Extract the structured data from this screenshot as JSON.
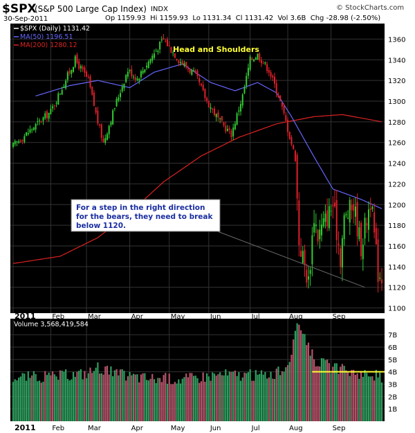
{
  "header": {
    "symbol": "$SPX",
    "name": "(S&P 500 Large Cap Index)",
    "exchange": "INDX",
    "watermark": "© StockCharts.com",
    "date": "30-Sep-2011",
    "op_label": "Op",
    "op": "1159.93",
    "hi_label": "Hi",
    "hi": "1159.93",
    "lo_label": "Lo",
    "lo": "1131.34",
    "cl_label": "Cl",
    "cl": "1131.42",
    "vol_label": "Vol",
    "vol": "3.6B",
    "chg_label": "Chg",
    "chg": "-28.98 (-2.50%)"
  },
  "colors": {
    "background": "#000000",
    "up_candle": "#32cd32",
    "down_candle": "#e0202a",
    "ma50": "#6666ff",
    "ma200": "#dd2222",
    "pattern": "#ffff33",
    "shoulders_small": "#ff33cc",
    "resistance": "#33cc33",
    "volume_up": "#2f9e5f",
    "volume_down": "#b4536a"
  },
  "chart_data": [
    {
      "type": "candlestick",
      "title": "$SPX (Daily) 1131.42",
      "legend": [
        {
          "label": "$SPX (Daily) 1131.42",
          "color": "#ffffff"
        },
        {
          "label": "MA(50) 1196.51",
          "color": "#6666ff"
        },
        {
          "label": "MA(200) 1280.12",
          "color": "#dd2222"
        }
      ],
      "x_months": [
        "2011",
        "Feb",
        "Mar",
        "Apr",
        "May",
        "Jun",
        "Jul",
        "Aug",
        "Sep"
      ],
      "month_start_index": [
        0,
        20,
        39,
        62,
        83,
        104,
        126,
        146,
        169
      ],
      "ylim": [
        1095,
        1375
      ],
      "yticks": [
        1100,
        1120,
        1140,
        1160,
        1180,
        1200,
        1220,
        1240,
        1260,
        1280,
        1300,
        1320,
        1340,
        1360
      ],
      "close_keypoints": [
        [
          0,
          1257
        ],
        [
          8,
          1270
        ],
        [
          20,
          1290
        ],
        [
          33,
          1340
        ],
        [
          40,
          1320
        ],
        [
          45,
          1280
        ],
        [
          48,
          1260
        ],
        [
          55,
          1300
        ],
        [
          61,
          1330
        ],
        [
          66,
          1322
        ],
        [
          80,
          1360
        ],
        [
          84,
          1350
        ],
        [
          88,
          1340
        ],
        [
          97,
          1325
        ],
        [
          103,
          1300
        ],
        [
          110,
          1280
        ],
        [
          116,
          1268
        ],
        [
          122,
          1305
        ],
        [
          126,
          1340
        ],
        [
          130,
          1345
        ],
        [
          136,
          1330
        ],
        [
          141,
          1306
        ],
        [
          145,
          1280
        ],
        [
          150,
          1245
        ],
        [
          152,
          1165
        ],
        [
          157,
          1125
        ],
        [
          160,
          1190
        ],
        [
          162,
          1170
        ],
        [
          170,
          1200
        ],
        [
          174,
          1150
        ],
        [
          176,
          1185
        ],
        [
          181,
          1200
        ],
        [
          185,
          1160
        ],
        [
          190,
          1205
        ],
        [
          194,
          1135
        ],
        [
          196,
          1131
        ]
      ],
      "ma50_keypoints": [
        [
          12,
          1305
        ],
        [
          30,
          1315
        ],
        [
          45,
          1320
        ],
        [
          62,
          1313
        ],
        [
          75,
          1328
        ],
        [
          90,
          1336
        ],
        [
          105,
          1318
        ],
        [
          118,
          1310
        ],
        [
          130,
          1318
        ],
        [
          140,
          1308
        ],
        [
          148,
          1285
        ],
        [
          160,
          1246
        ],
        [
          170,
          1215
        ],
        [
          185,
          1205
        ],
        [
          196,
          1196
        ]
      ],
      "ma200_keypoints": [
        [
          0,
          1143
        ],
        [
          25,
          1150
        ],
        [
          45,
          1168
        ],
        [
          62,
          1192
        ],
        [
          80,
          1222
        ],
        [
          100,
          1247
        ],
        [
          120,
          1265
        ],
        [
          140,
          1278
        ],
        [
          160,
          1285
        ],
        [
          175,
          1287
        ],
        [
          196,
          1280
        ]
      ],
      "overlays": {
        "head_and_shoulders_label": "Head and Shoulders",
        "head_and_shoulders": [
          [
            1300,
            1318
          ],
          [
            1350,
            1342
          ],
          [
            1305,
            1305
          ],
          [
            1365,
            1372
          ],
          [
            1300,
            1347
          ],
          [
            1360,
            1327
          ],
          [
            1290,
            1372
          ],
          [
            1333,
            1360
          ],
          [
            1332
          ]
        ],
        "neckline": [
          [
            1242,
            1260
          ],
          [
            1269,
            1283
          ]
        ],
        "resistance": [
          [
            1229,
            1232
          ]
        ],
        "upper_channel": [
          [
            1190,
            1230
          ],
          [
            1250,
            1255
          ]
        ],
        "lower_channel": [
          [
            1118,
            1240
          ],
          [
            1174,
            1275
          ]
        ],
        "lower_support": [
          [
            1100,
            1270
          ],
          [
            1122,
            1290
          ]
        ],
        "small_hs": [
          [
            1178,
            1206
          ],
          [
            1190,
            1212
          ]
        ]
      },
      "annotation": "For a step in the right direction for the bears, they need to break below 1120."
    },
    {
      "type": "bar",
      "title": "Volume 3,568,419,584",
      "ylim": [
        0,
        8.3
      ],
      "yticks": [
        "1B",
        "2B",
        "3B",
        "4B",
        "5B",
        "6B",
        "7B"
      ],
      "ytick_values": [
        1,
        2,
        3,
        4,
        5,
        6,
        7
      ],
      "threshold": 4.0,
      "volume_keypoints": [
        [
          0,
          3.6
        ],
        [
          20,
          3.6
        ],
        [
          40,
          3.9
        ],
        [
          45,
          4.4
        ],
        [
          55,
          3.8
        ],
        [
          70,
          3.5
        ],
        [
          90,
          3.4
        ],
        [
          110,
          3.8
        ],
        [
          130,
          3.7
        ],
        [
          143,
          4.0
        ],
        [
          148,
          5.5
        ],
        [
          151,
          7.5
        ],
        [
          152,
          8.0
        ],
        [
          155,
          7.0
        ],
        [
          160,
          5.0
        ],
        [
          170,
          4.3
        ],
        [
          180,
          4.0
        ],
        [
          190,
          3.8
        ],
        [
          196,
          3.6
        ]
      ]
    }
  ]
}
